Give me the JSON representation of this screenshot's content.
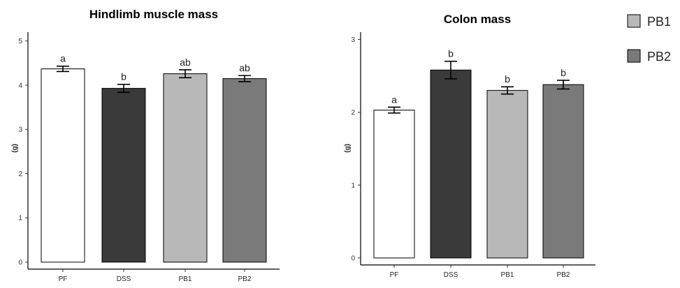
{
  "chart_data": [
    {
      "type": "bar",
      "title": "Hindlimb muscle mass",
      "xlabel": "",
      "ylabel": "(g)",
      "categories": [
        "PF",
        "DSS",
        "PB1",
        "PB2"
      ],
      "values": [
        4.37,
        3.93,
        4.26,
        4.15
      ],
      "errors": [
        0.06,
        0.09,
        0.09,
        0.07
      ],
      "significance": [
        "a",
        "b",
        "ab",
        "ab"
      ],
      "colors": [
        "#ffffff",
        "#3a3a3a",
        "#b8b8b8",
        "#7a7a7a"
      ],
      "ylim": [
        0,
        5.2
      ],
      "yticks": [
        0,
        1,
        2,
        3,
        4,
        5
      ],
      "grid": false
    },
    {
      "type": "bar",
      "title": "Colon mass",
      "xlabel": "",
      "ylabel": "(g)",
      "categories": [
        "PF",
        "DSS",
        "PB1",
        "PB2"
      ],
      "values": [
        2.03,
        2.58,
        2.3,
        2.38
      ],
      "errors": [
        0.04,
        0.12,
        0.05,
        0.06
      ],
      "significance": [
        "a",
        "b",
        "b",
        "b"
      ],
      "colors": [
        "#ffffff",
        "#3a3a3a",
        "#b8b8b8",
        "#7a7a7a"
      ],
      "ylim": [
        0,
        3.1
      ],
      "yticks": [
        0,
        1,
        2,
        3
      ],
      "grid": false
    }
  ],
  "legend": {
    "placement": "top-right",
    "items": [
      {
        "name": "PB1",
        "color": "#b8b8b8"
      },
      {
        "name": "PB2",
        "color": "#7a7a7a"
      }
    ]
  }
}
